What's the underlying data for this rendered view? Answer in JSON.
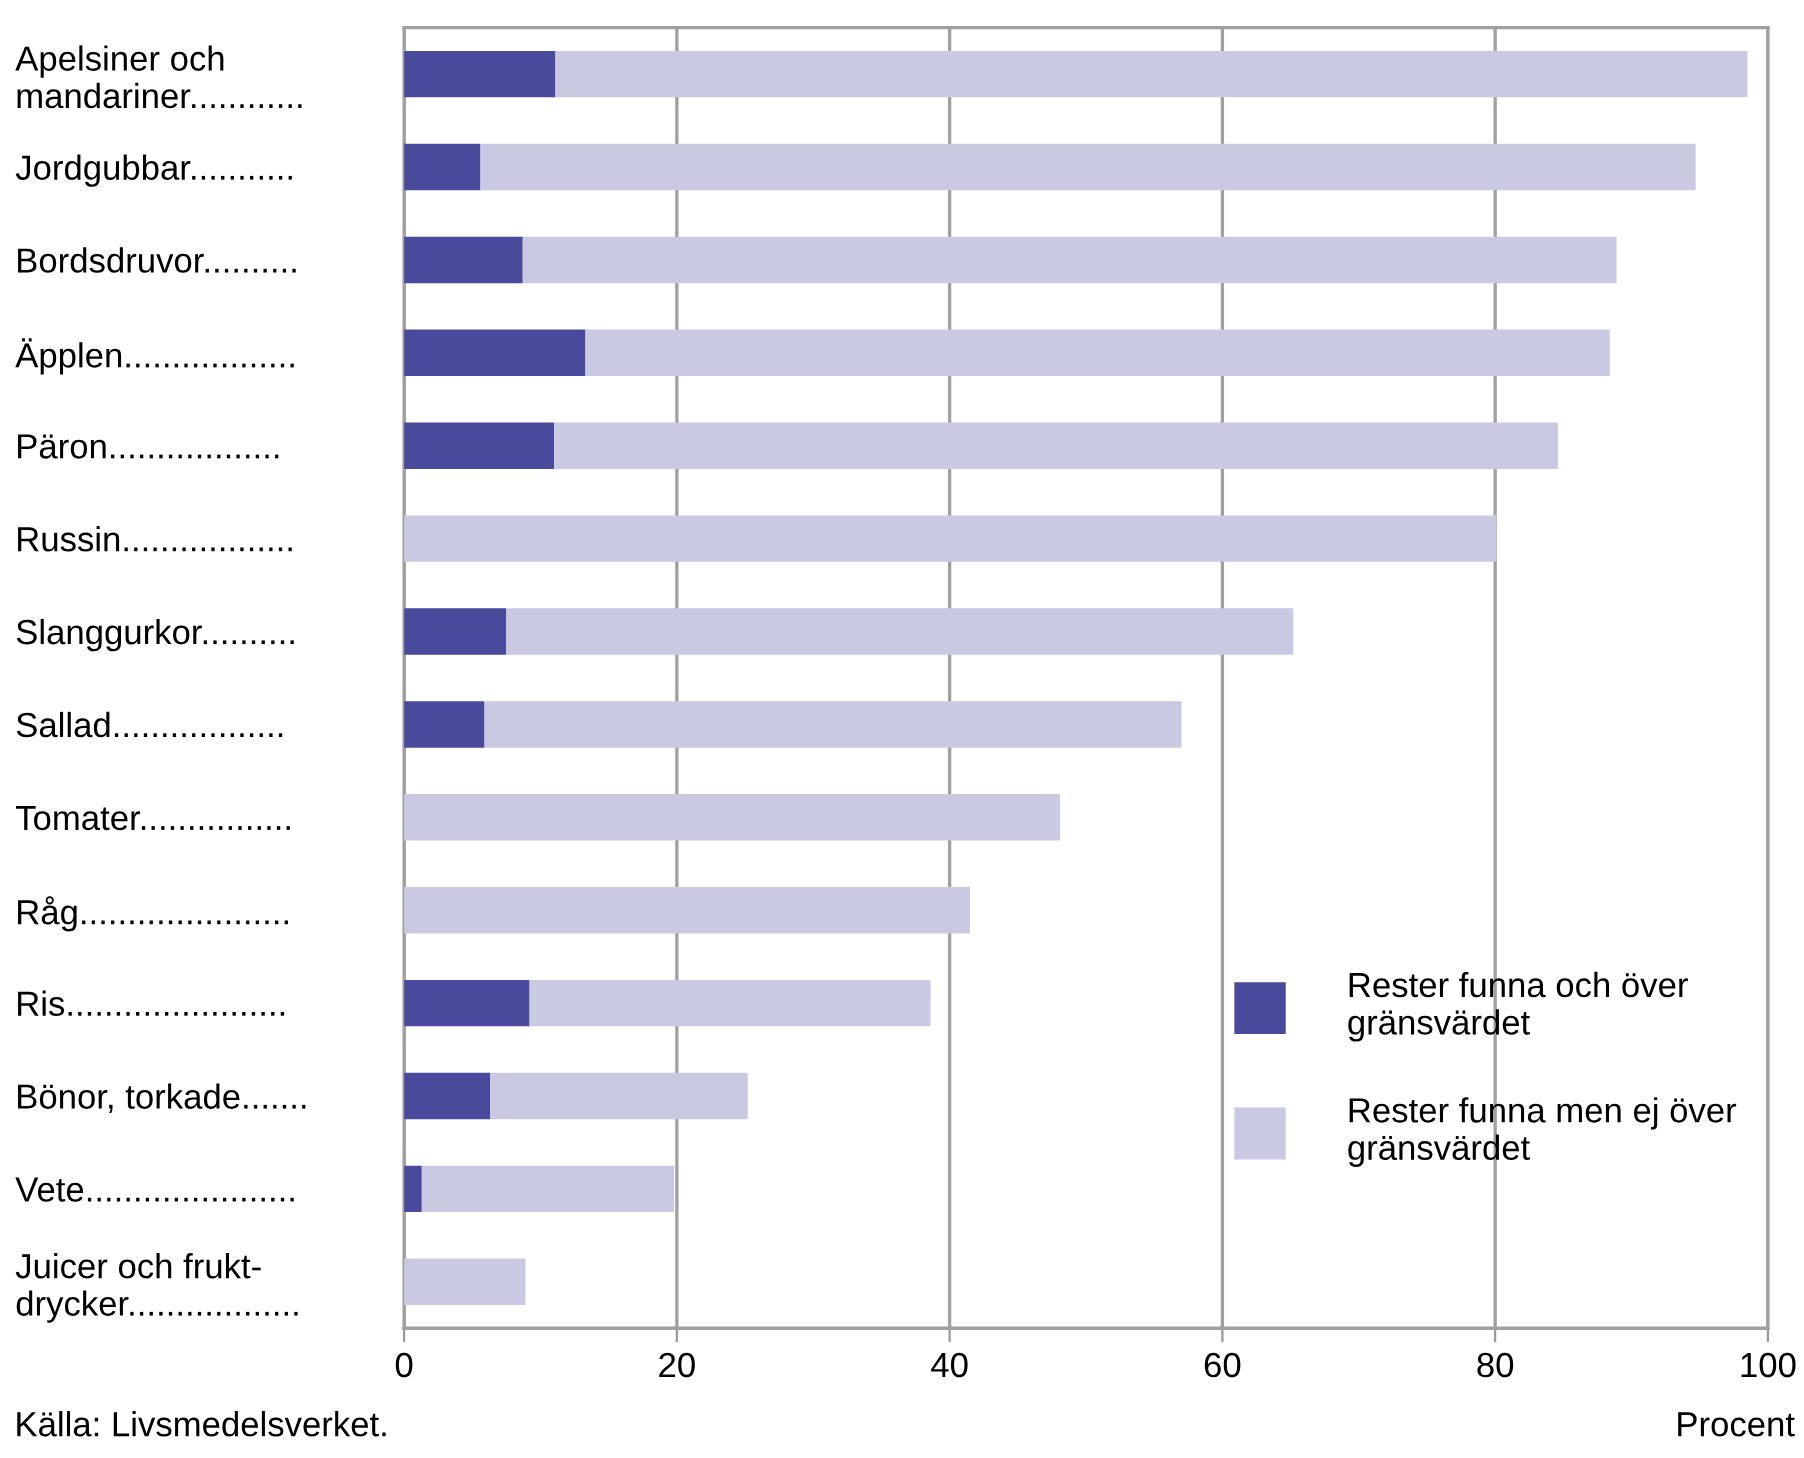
{
  "chart_data": {
    "type": "bar",
    "orientation": "horizontal",
    "stacked": true,
    "categories": [
      "Apelsiner och\nmandariner............",
      "Jordgubbar...........",
      "Bordsdruvor..........",
      "Äpplen..................",
      "Päron..................",
      "Russin..................",
      "Slanggurkor..........",
      "Sallad..................",
      "Tomater................",
      "Råg......................",
      "Ris.......................",
      "Bönor, torkade.......",
      "Vete......................",
      "Juicer och frukt-\ndrycker.................."
    ],
    "series": [
      {
        "name": "Rester funna och över\ngränsvärdet",
        "color": "#4a4a9c",
        "values": [
          11.1,
          5.6,
          8.7,
          13.3,
          11.0,
          0,
          7.5,
          5.9,
          0,
          0,
          9.2,
          6.3,
          1.3,
          0
        ]
      },
      {
        "name": "Rester funna men ej över\ngränsvärdet",
        "color": "#c9c9e2",
        "values": [
          87.4,
          89.1,
          80.2,
          75.1,
          73.6,
          80.1,
          57.7,
          51.1,
          48.1,
          41.5,
          29.4,
          18.9,
          18.5,
          8.9
        ]
      }
    ],
    "xlim": [
      0,
      100
    ],
    "xticks": [
      0,
      20,
      40,
      60,
      80,
      100
    ],
    "grid": "x",
    "legend": "bottom right",
    "xlabel": "Procent",
    "annotations": [
      "Källa: Livsmedelsverket."
    ]
  }
}
